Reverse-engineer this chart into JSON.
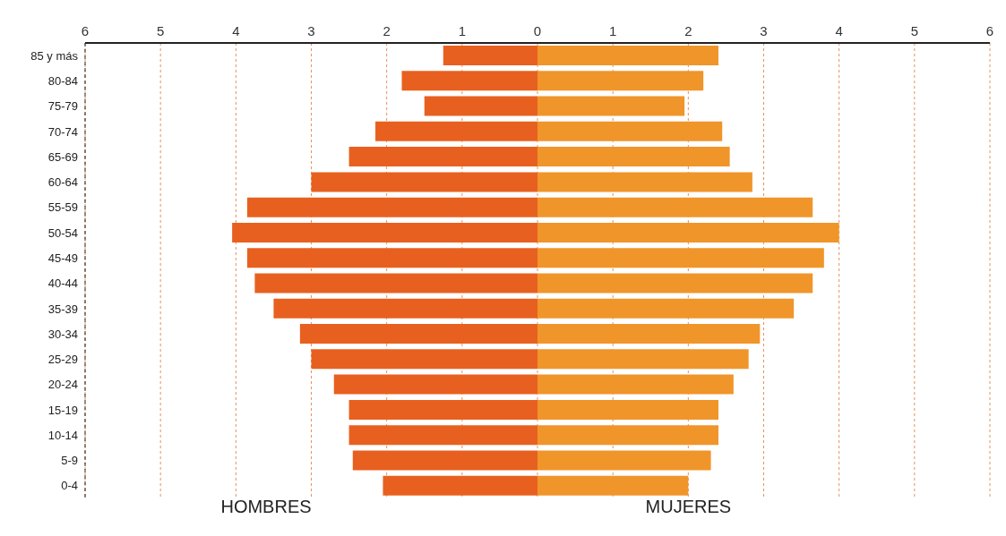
{
  "chart_data": {
    "type": "bar",
    "orientation": "horizontal",
    "stacked": true,
    "categories": [
      "85 y más",
      "80-84",
      "75-79",
      "70-74",
      "65-69",
      "60-64",
      "55-59",
      "50-54",
      "45-49",
      "40-44",
      "35-39",
      "30-34",
      "25-29",
      "20-24",
      "15-19",
      "10-14",
      "5-9",
      "0-4"
    ],
    "series": [
      {
        "name": "HOMBRES",
        "color": "#e8601f",
        "values": [
          -1.25,
          -1.8,
          -1.5,
          -2.15,
          -2.5,
          -3.0,
          -3.85,
          -4.05,
          -3.85,
          -3.75,
          -3.5,
          -3.15,
          -3.0,
          -2.7,
          -2.5,
          -2.5,
          -2.45,
          -2.05
        ]
      },
      {
        "name": "MUJERES",
        "color": "#f0952a",
        "values": [
          2.4,
          2.2,
          1.95,
          2.45,
          2.55,
          2.85,
          3.65,
          4.0,
          3.8,
          3.65,
          3.4,
          2.95,
          2.8,
          2.6,
          2.4,
          2.4,
          2.3,
          2.0
        ]
      }
    ],
    "xlim": [
      -6,
      6
    ],
    "xticks": [
      {
        "value": -6,
        "label": "6"
      },
      {
        "value": -5,
        "label": "5"
      },
      {
        "value": -4,
        "label": "4"
      },
      {
        "value": -3,
        "label": "3"
      },
      {
        "value": -2,
        "label": "2"
      },
      {
        "value": -1,
        "label": "1"
      },
      0,
      1,
      2,
      3,
      4,
      5,
      6
    ],
    "grid": "x"
  }
}
